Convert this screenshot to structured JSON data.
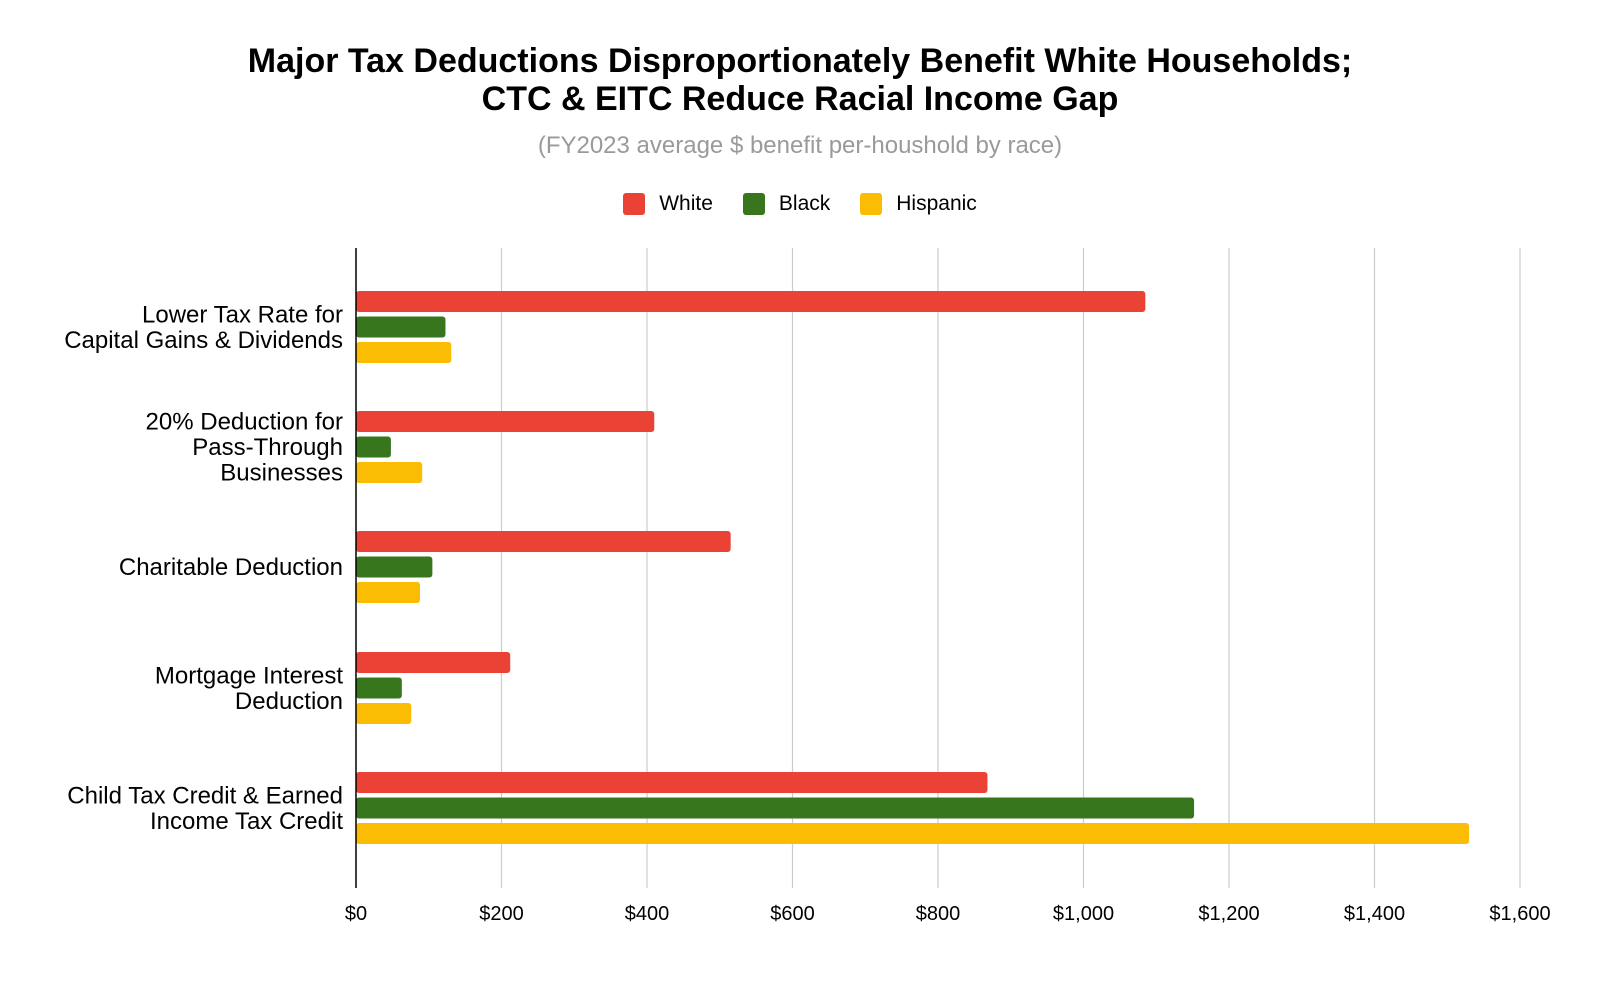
{
  "chart_data": {
    "type": "bar",
    "orientation": "horizontal",
    "title_line1": "Major Tax Deductions Disproportionately Benefit White Households;",
    "title_line2": "CTC & EITC Reduce Racial Income Gap",
    "subtitle": "(FY2023 average $ benefit per-houshold by race)",
    "xlabel": "",
    "ylabel": "",
    "legend_position": "top",
    "grid": true,
    "xlim": [
      0,
      1600
    ],
    "x_ticks": [
      0,
      200,
      400,
      600,
      800,
      1000,
      1200,
      1400,
      1600
    ],
    "x_tick_labels": [
      "$0",
      "$200",
      "$400",
      "$600",
      "$800",
      "$1,000",
      "$1,200",
      "$1,400",
      "$1,600"
    ],
    "categories": [
      [
        "Lower Tax Rate for",
        "Capital Gains & Dividends"
      ],
      [
        "20% Deduction for",
        "Pass-Through",
        "Businesses"
      ],
      [
        "Charitable Deduction"
      ],
      [
        "Mortgage Interest",
        "Deduction"
      ],
      [
        "Child Tax Credit & Earned",
        "Income Tax Credit"
      ]
    ],
    "series": [
      {
        "name": "White",
        "color": "#ea4335",
        "values": [
          1085,
          410,
          515,
          212,
          868
        ]
      },
      {
        "name": "Black",
        "color": "#38761d",
        "values": [
          123,
          48,
          105,
          63,
          1152
        ]
      },
      {
        "name": "Hispanic",
        "color": "#fbbc04",
        "values": [
          131,
          91,
          88,
          76,
          1530
        ]
      }
    ]
  }
}
